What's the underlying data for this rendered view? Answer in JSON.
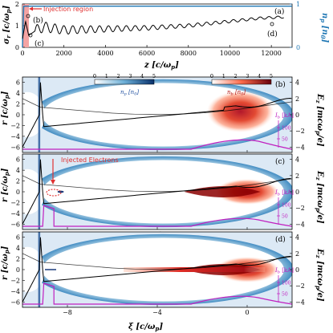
{
  "chart_data": [
    {
      "panel": "(a)",
      "type": "line",
      "xlabel": "z [c/ω_p]",
      "ylabel": "σ_r [c/ω_p]",
      "y2label": "n_p [n_0]",
      "xlim": [
        0,
        13000
      ],
      "ylim": [
        0,
        2
      ],
      "y2lim": [
        0,
        1
      ],
      "xticks": [
        "0",
        "2000",
        "4000",
        "6000",
        "8000",
        "10000",
        "12000"
      ],
      "yticks": [
        "0",
        "1",
        "2"
      ],
      "y2ticks": [
        "0",
        "1"
      ],
      "annotations": [
        "Injection region",
        "(b)",
        "(c)",
        "(d)"
      ],
      "series": [
        {
          "role": "sigma_r",
          "color": "#000000",
          "x": [
            0,
            150,
            300,
            600,
            1000,
            2000,
            4000,
            6000,
            8000,
            10000,
            11500,
            12600
          ],
          "y": [
            0.4,
            1.2,
            0.55,
            0.75,
            0.95,
            0.8,
            0.85,
            0.9,
            1.0,
            1.2,
            1.35,
            1.4
          ]
        },
        {
          "role": "n_p",
          "color": "#1f77b4",
          "x": [
            0,
            60,
            13000
          ],
          "y": [
            0,
            0.95,
            0.95
          ]
        }
      ],
      "injection_region_z": [
        0,
        300
      ]
    },
    {
      "panel": "(b)",
      "type": "heatmap",
      "xlim": [
        -10,
        2
      ],
      "ylim": [
        -7,
        7
      ],
      "colorbar_np": {
        "label": "n_p [n_0]",
        "ticks": [
          "0",
          "1",
          "2",
          "3",
          "4",
          "5"
        ]
      },
      "colorbar_nb": {
        "label": "n_b [n_0]",
        "ticks": [
          "0",
          "1",
          "2",
          "3",
          "4",
          "5"
        ]
      },
      "current_label": "I_b [kA]",
      "current_ticks": [
        "100",
        "50"
      ],
      "right_ticks": [
        "4",
        "2",
        "0",
        "−2",
        "−4"
      ]
    },
    {
      "panel": "(c)",
      "type": "heatmap",
      "xlim": [
        -10,
        2
      ],
      "ylim": [
        -7,
        7
      ],
      "annotation": "Injected Electrons",
      "current_label": "I_b [kA]",
      "current_ticks": [
        "100",
        "50"
      ],
      "right_ticks": [
        "4",
        "2",
        "0",
        "−2",
        "−4"
      ]
    },
    {
      "panel": "(d)",
      "type": "heatmap",
      "xlim": [
        -10,
        2
      ],
      "ylim": [
        -7,
        7
      ],
      "current_label": "I_b [kA]",
      "current_ticks": [
        "100",
        "50"
      ],
      "right_ticks": [
        "4",
        "2",
        "0",
        "−2",
        "−4"
      ]
    }
  ],
  "labels": {
    "a_xlabel": "z [c/ω",
    "a_ylabel": "σ",
    "a_y2label": "n",
    "injection": "Injection region",
    "tag_a": "(a)",
    "tag_b": "(b)",
    "tag_c": "(c)",
    "tag_d": "(d)",
    "b_marker": "(b)",
    "c_marker": "(c)",
    "d_marker": "(d)",
    "injected": "Injected Electrons",
    "xi_label": "ξ [c/ω",
    "r_label": "r [c/ω",
    "ez_label": "E",
    "np_cb": "n",
    "nb_cb": "n",
    "ib": "I",
    "ib_unit": "[kA]",
    "cb_ticks": [
      "0",
      "1",
      "2",
      "3",
      "4",
      "5"
    ],
    "left_ticks": [
      "6",
      "4",
      "2",
      "0",
      "−2",
      "−4",
      "−6"
    ],
    "right_ticks": [
      "4",
      "2",
      "0",
      "−2",
      "−4"
    ],
    "xi_ticks": [
      "−8",
      "−4",
      "0"
    ],
    "z_ticks": [
      "0",
      "2000",
      "4000",
      "6000",
      "8000",
      "10000",
      "12000"
    ],
    "a_y_ticks": [
      "0",
      "1",
      "2"
    ],
    "a_y2_ticks": [
      "0",
      "1"
    ],
    "ib_ticks": [
      "100",
      "50"
    ]
  }
}
